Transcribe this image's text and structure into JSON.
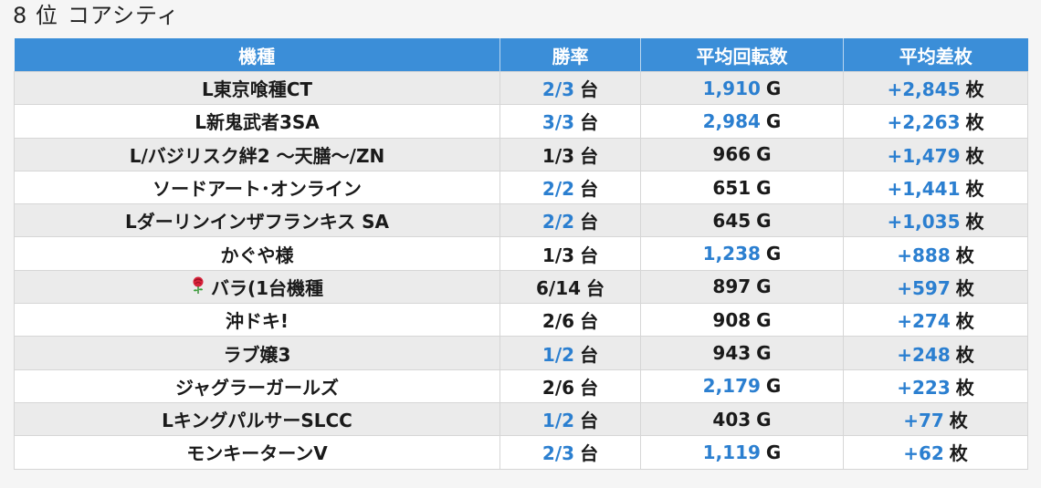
{
  "page": {
    "rank": "8 位",
    "store": "コアシティ"
  },
  "columns": [
    "機種",
    "勝率",
    "平均回転数",
    "平均差枚"
  ],
  "units": {
    "win": "台",
    "spins": "G",
    "diff": "枚"
  },
  "colors": {
    "header_bg": "#3b8ed8",
    "highlight_text": "#2b7fd0",
    "row_alt": "#ebebeb"
  },
  "rows": [
    {
      "machine": "L東京喰種CT",
      "win": "2/3",
      "win_hl": true,
      "spins": "1,910",
      "spins_hl": true,
      "diff": "+2,845",
      "diff_hl": true
    },
    {
      "machine": "L新鬼武者3SA",
      "win": "3/3",
      "win_hl": true,
      "spins": "2,984",
      "spins_hl": true,
      "diff": "+2,263",
      "diff_hl": true
    },
    {
      "machine": "L/バジリスク絆2 ～天膳～/ZN",
      "win": "1/3",
      "win_hl": false,
      "spins": "966",
      "spins_hl": false,
      "diff": "+1,479",
      "diff_hl": true
    },
    {
      "machine": "ソードアート･オンライン",
      "win": "2/2",
      "win_hl": true,
      "spins": "651",
      "spins_hl": false,
      "diff": "+1,441",
      "diff_hl": true
    },
    {
      "machine": "Lダーリンインザフランキス SA",
      "win": "2/2",
      "win_hl": true,
      "spins": "645",
      "spins_hl": false,
      "diff": "+1,035",
      "diff_hl": true
    },
    {
      "machine": "かぐや様",
      "win": "1/3",
      "win_hl": false,
      "spins": "1,238",
      "spins_hl": true,
      "diff": "+888",
      "diff_hl": true
    },
    {
      "machine": "バラ(1台機種",
      "icon": "rose-icon",
      "win": "6/14",
      "win_hl": false,
      "spins": "897",
      "spins_hl": false,
      "diff": "+597",
      "diff_hl": true
    },
    {
      "machine": "沖ドキ!",
      "win": "2/6",
      "win_hl": false,
      "spins": "908",
      "spins_hl": false,
      "diff": "+274",
      "diff_hl": true
    },
    {
      "machine": "ラブ嬢3",
      "win": "1/2",
      "win_hl": true,
      "spins": "943",
      "spins_hl": false,
      "diff": "+248",
      "diff_hl": true
    },
    {
      "machine": "ジャグラーガールズ",
      "win": "2/6",
      "win_hl": false,
      "spins": "2,179",
      "spins_hl": true,
      "diff": "+223",
      "diff_hl": true
    },
    {
      "machine": "LキングパルサーSLCC",
      "win": "1/2",
      "win_hl": true,
      "spins": "403",
      "spins_hl": false,
      "diff": "+77",
      "diff_hl": true
    },
    {
      "machine": "モンキーターンV",
      "win": "2/3",
      "win_hl": true,
      "spins": "1,119",
      "spins_hl": true,
      "diff": "+62",
      "diff_hl": true
    }
  ]
}
